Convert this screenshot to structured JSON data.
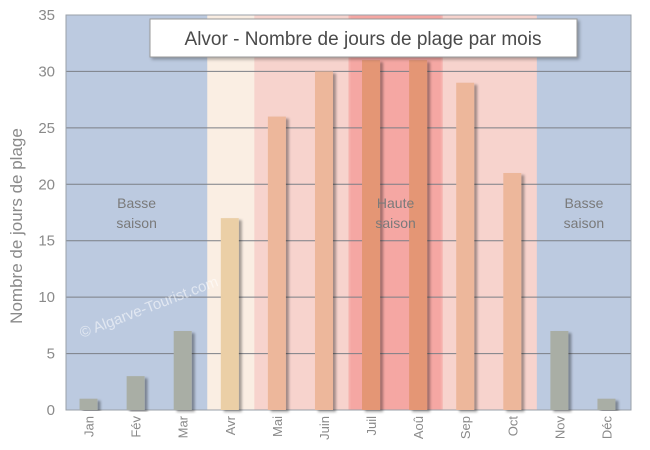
{
  "chart_data": {
    "type": "bar",
    "title": "Alvor - Nombre de jours de plage par mois",
    "xlabel": "",
    "ylabel": "Nombre de jours de plage",
    "ylim": [
      0,
      35
    ],
    "yticks": [
      "0",
      "5",
      "10",
      "15",
      "20",
      "25",
      "30",
      "35"
    ],
    "categories": [
      "Jan",
      "Fév",
      "Mar",
      "Avr",
      "Mai",
      "Juin",
      "Juil",
      "Aoû",
      "Sep",
      "Oct",
      "Nov",
      "Déc"
    ],
    "values": [
      1,
      3,
      7,
      17,
      26,
      30,
      31,
      31,
      29,
      21,
      7,
      1
    ],
    "grid": true,
    "seasons": [
      {
        "label_line1": "Basse",
        "label_line2": "saison",
        "from_index": 0,
        "to_index": 2,
        "color": "#bccae0"
      },
      {
        "label_line1": "Haute",
        "label_line2": "saison",
        "from_index": 6,
        "to_index": 7,
        "color": "#f6b0ac"
      },
      {
        "label_line1": "Basse",
        "label_line2": "saison",
        "from_index": 10,
        "to_index": 11,
        "color": "#bccae0"
      }
    ],
    "watermark": "© Algarve-Tourist.com",
    "colors": {
      "band_low": "#bccae0",
      "band_spring": "#faeee3",
      "band_mid": "#f7d3cd",
      "band_high": "#f6b0ac",
      "bar_grey": "#a9aea5",
      "bar_cream": "#ebcfa6",
      "bar_peach": "#edb79b",
      "bar_orange": "#e49675"
    }
  }
}
